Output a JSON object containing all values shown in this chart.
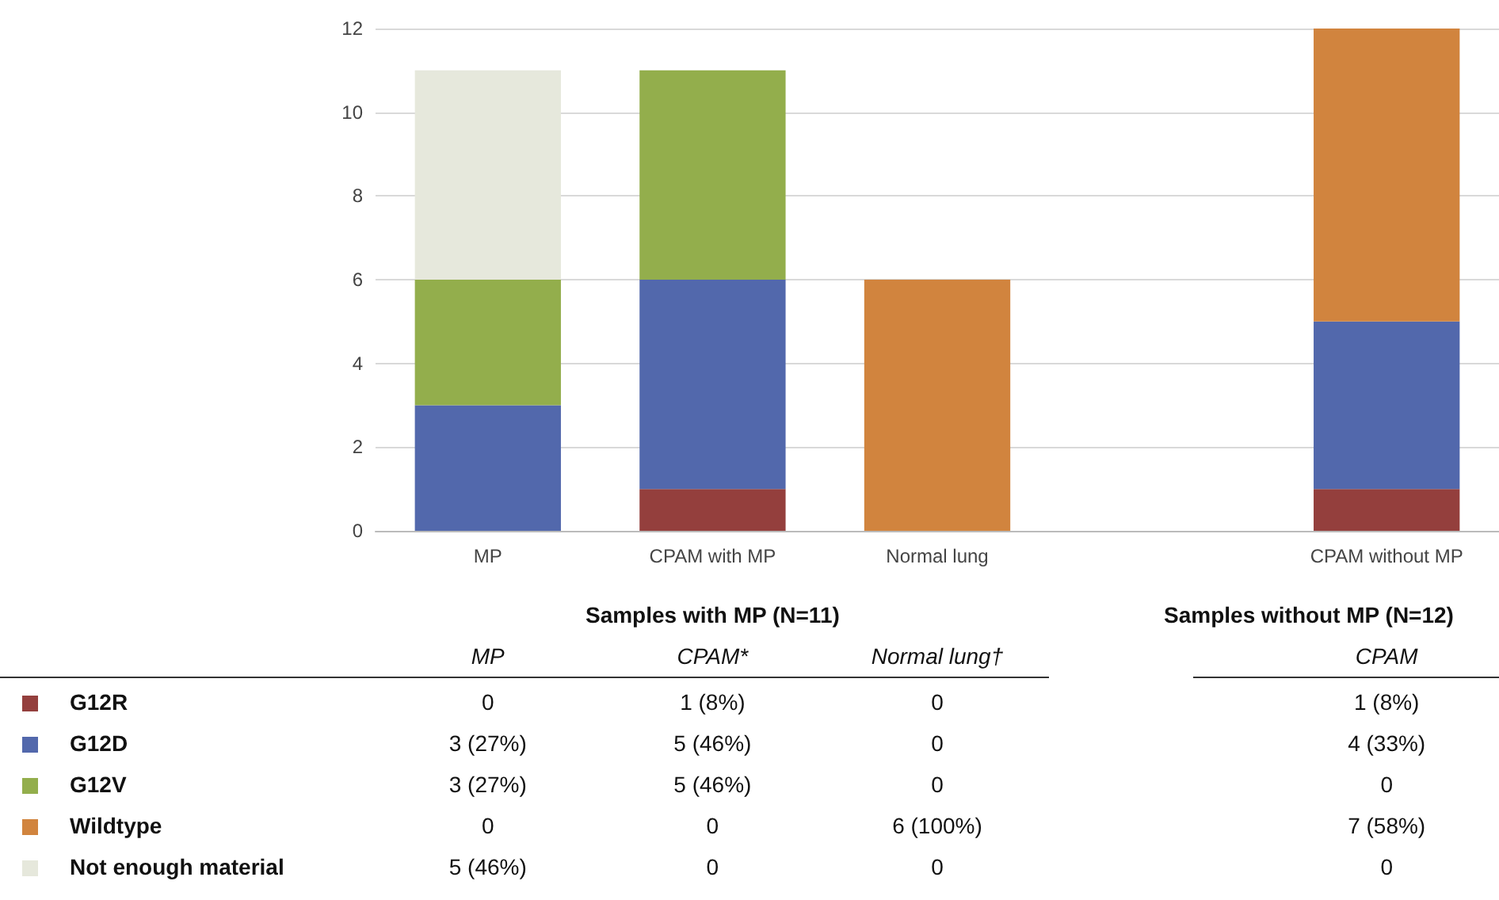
{
  "chart_data": {
    "type": "bar",
    "stacked": true,
    "categories": [
      "MP",
      "CPAM with MP",
      "Normal lung",
      null,
      "CPAM without MP"
    ],
    "series": [
      {
        "name": "G12R",
        "color": "#943f3d",
        "values": [
          0,
          1,
          0,
          null,
          1
        ],
        "value_labels": [
          "0",
          "1 (8%)",
          "0",
          null,
          "1 (8%)"
        ]
      },
      {
        "name": "G12D",
        "color": "#5268ac",
        "values": [
          3,
          5,
          0,
          null,
          4
        ],
        "value_labels": [
          "3 (27%)",
          "5 (46%)",
          "0",
          null,
          "4 (33%)"
        ]
      },
      {
        "name": "G12V",
        "color": "#93ae4c",
        "values": [
          3,
          5,
          0,
          null,
          0
        ],
        "value_labels": [
          "3 (27%)",
          "5 (46%)",
          "0",
          null,
          "0"
        ]
      },
      {
        "name": "Wildtype",
        "color": "#d1843e",
        "values": [
          0,
          0,
          6,
          null,
          7
        ],
        "value_labels": [
          "0",
          "0",
          "6 (100%)",
          null,
          "7 (58%)"
        ]
      },
      {
        "name": "Not enough material",
        "color": "#e6e8dc",
        "values": [
          5,
          0,
          0,
          null,
          0
        ],
        "value_labels": [
          "5 (46%)",
          "0",
          "0",
          null,
          "0"
        ]
      }
    ],
    "ylim": [
      0,
      12
    ],
    "yticks": [
      0,
      2,
      4,
      6,
      8,
      10,
      12
    ],
    "grid": "y",
    "legend": "bottom left",
    "annotations": [
      "Samples with MP (N=11)",
      "Samples without MP (N=12)",
      "MP",
      "CPAM*",
      "Normal lung†",
      "CPAM"
    ]
  }
}
